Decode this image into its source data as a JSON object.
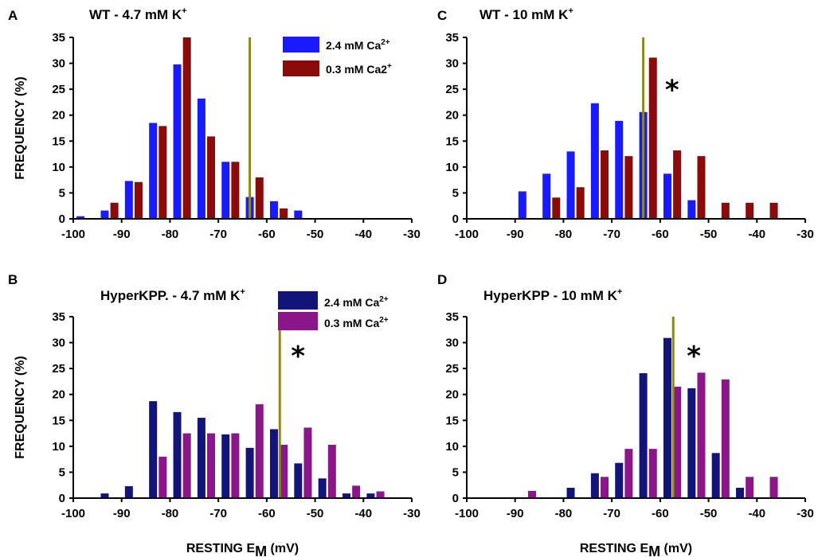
{
  "colors": {
    "wt_high": "#1a1aff",
    "wt_low": "#8b0a0a",
    "hk_high": "#12147a",
    "hk_low": "#8a168a",
    "threshold": "#8a8a1a"
  },
  "chart_data": [
    {
      "id": "A",
      "type": "bar",
      "panel_label": "A",
      "title_main": "WT - 4.7 mM K",
      "title_sup": "+",
      "ylabel": "FREQUENCY (%)",
      "xlabel_main": "",
      "xlabel_sub": "",
      "xlabel_tail": "",
      "xlim": [
        -100,
        -30
      ],
      "ylim": [
        0,
        35
      ],
      "xticks": [
        "-100",
        "-90",
        "-80",
        "-70",
        "-60",
        "-50",
        "-40",
        "-30"
      ],
      "yticks": [
        "0",
        "5",
        "10",
        "15",
        "20",
        "25",
        "30",
        "35"
      ],
      "threshold_x": -63.5,
      "asterisk": "",
      "asterisk_at": [],
      "legend": [
        {
          "main": "2.4 mM Ca",
          "sup": "2+"
        },
        {
          "main": "0.3 mM Ca2",
          "sup": "+"
        }
      ],
      "series": [
        {
          "name": "2.4 mM Ca2+",
          "x": [
            -98.5,
            -93.5,
            -88.5,
            -83.5,
            -78.5,
            -73.5,
            -68.5,
            -63.5,
            -58.5,
            -53.5
          ],
          "values": [
            0.5,
            1.6,
            7.3,
            18.5,
            29.8,
            23.2,
            11,
            4.2,
            3.4,
            1.6
          ]
        },
        {
          "name": "0.3 mM Ca2+",
          "x": [
            -91.5,
            -86.5,
            -81.5,
            -76.5,
            -71.5,
            -66.5,
            -61.5,
            -56.5
          ],
          "values": [
            3.1,
            7.1,
            17.9,
            35,
            15.9,
            11,
            8,
            2
          ]
        }
      ]
    },
    {
      "id": "B",
      "type": "bar",
      "panel_label": "B",
      "title_main": "HyperKPP. - 4.7 mM K",
      "title_sup": "+",
      "ylabel": "FREQUENCY (%)",
      "xlabel_main": "RESTING E",
      "xlabel_sub": "M",
      "xlabel_tail": " (mV)",
      "xlim": [
        -100,
        -30
      ],
      "ylim": [
        0,
        35
      ],
      "xticks": [
        "-100",
        "-90",
        "-80",
        "-70",
        "-60",
        "-50",
        "-40",
        "-30"
      ],
      "yticks": [
        "0",
        "5",
        "10",
        "15",
        "20",
        "25",
        "30",
        "35"
      ],
      "threshold_x": -57.3,
      "asterisk": "*",
      "asterisk_at": [
        -55,
        29
      ],
      "legend": [
        {
          "main": "2.4 mM Ca",
          "sup": "2+"
        },
        {
          "main": "0.3 mM Ca",
          "sup": "2+"
        }
      ],
      "series": [
        {
          "name": "2.4 mM Ca2+",
          "x": [
            -93.5,
            -88.5,
            -83.5,
            -78.5,
            -73.5,
            -68.5,
            -63.5,
            -58.5,
            -53.5,
            -48.5,
            -43.5,
            -38.5
          ],
          "values": [
            0.9,
            2.3,
            18.7,
            16.6,
            15.5,
            12.3,
            9.7,
            13.3,
            6.7,
            3.8,
            0.9,
            0.9
          ]
        },
        {
          "name": "0.3 mM Ca2+",
          "x": [
            -81.5,
            -76.5,
            -71.5,
            -66.5,
            -61.5,
            -56.5,
            -51.5,
            -46.5,
            -41.5,
            -36.5
          ],
          "values": [
            8,
            12.5,
            12.5,
            12.5,
            18.1,
            10.3,
            13.6,
            10.3,
            2.4,
            1.3
          ]
        }
      ]
    },
    {
      "id": "C",
      "type": "bar",
      "panel_label": "C",
      "title_main": "WT - 10 mM K",
      "title_sup": "+",
      "ylabel": "",
      "xlabel_main": "",
      "xlabel_sub": "",
      "xlabel_tail": "",
      "xlim": [
        -100,
        -30
      ],
      "ylim": [
        0,
        35
      ],
      "xticks": [
        "-100",
        "-90",
        "-80",
        "-70",
        "-60",
        "-50",
        "-40",
        "-30"
      ],
      "yticks": [
        "0",
        "5",
        "10",
        "15",
        "20",
        "25",
        "30",
        "35"
      ],
      "threshold_x": -63.5,
      "asterisk": "*",
      "asterisk_at": [
        -59,
        26.5
      ],
      "legend": [],
      "series": [
        {
          "name": "2.4 mM Ca2+",
          "x": [
            -88.5,
            -83.5,
            -78.5,
            -73.5,
            -68.5,
            -63.5,
            -58.5,
            -53.5
          ],
          "values": [
            5.3,
            8.7,
            13,
            22.3,
            18.9,
            20.6,
            8.7,
            3.6
          ]
        },
        {
          "name": "0.3 mM Ca2+",
          "x": [
            -81.5,
            -76.5,
            -71.5,
            -66.5,
            -61.5,
            -56.5,
            -51.5,
            -46.5,
            -41.5,
            -36.5
          ],
          "values": [
            4.1,
            6.1,
            13.2,
            12.1,
            31.1,
            13.2,
            12.1,
            3.1,
            3.1,
            3.1
          ]
        }
      ]
    },
    {
      "id": "D",
      "type": "bar",
      "panel_label": "D",
      "title_main": "HyperKPP - 10 mM K",
      "title_sup": "+",
      "ylabel": "",
      "xlabel_main": "RESTING E",
      "xlabel_sub": "M",
      "xlabel_tail": " (mV)",
      "xlim": [
        -100,
        -30
      ],
      "ylim": [
        0,
        35
      ],
      "xticks": [
        "-100",
        "-90",
        "-80",
        "-70",
        "-60",
        "-50",
        "-40",
        "-30"
      ],
      "yticks": [
        "0",
        "5",
        "10",
        "15",
        "20",
        "25",
        "30",
        "35"
      ],
      "threshold_x": -57.3,
      "asterisk": "*",
      "asterisk_at": [
        -54.5,
        29
      ],
      "legend": [],
      "series": [
        {
          "name": "2.4 mM Ca2+",
          "x": [
            -78.5,
            -73.5,
            -68.5,
            -63.5,
            -58.5,
            -53.5,
            -48.5,
            -43.5
          ],
          "values": [
            2,
            4.8,
            6.8,
            24.1,
            30.9,
            21.2,
            8.7,
            2
          ]
        },
        {
          "name": "0.3 mM Ca2+",
          "x": [
            -86.5,
            -71.5,
            -66.5,
            -61.5,
            -56.5,
            -51.5,
            -46.5,
            -41.5,
            -36.5
          ],
          "values": [
            1.4,
            4.1,
            9.5,
            9.5,
            21.5,
            24.2,
            22.9,
            4.1,
            4.1
          ]
        }
      ]
    }
  ]
}
